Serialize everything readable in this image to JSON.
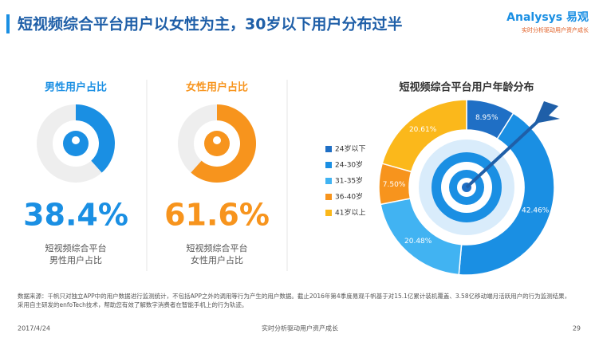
{
  "header": {
    "title": "短视频综合平台用户以女性为主，30岁以下用户分布过半",
    "logo": "Analysys 易观",
    "tagline": "实时分析驱动用户资产成长"
  },
  "chart_data": [
    {
      "type": "donut",
      "title": "男性用户占比",
      "values": [
        38.4
      ],
      "value_labels": [
        "38.4%"
      ],
      "color": "#1a8fe3",
      "caption": [
        "短视频综合平台",
        "男性用户占比"
      ]
    },
    {
      "type": "donut",
      "title": "女性用户占比",
      "values": [
        61.6
      ],
      "value_labels": [
        "61.6%"
      ],
      "color": "#f7941d",
      "caption": [
        "短视频综合平台",
        "女性用户占比"
      ]
    },
    {
      "type": "pie",
      "title": "短视频综合平台用户年龄分布",
      "categories": [
        "24岁以下",
        "24-30岁",
        "31-35岁",
        "36-40岁",
        "41岁以上"
      ],
      "values": [
        8.95,
        42.46,
        20.48,
        7.5,
        20.61
      ],
      "value_labels": [
        "8.95%",
        "42.46%",
        "20.48%",
        "7.50%",
        "20.61%"
      ],
      "colors": [
        "#1f6fc5",
        "#1a8fe3",
        "#41b3f2",
        "#f7941d",
        "#fbb81b"
      ],
      "legend": "left"
    }
  ],
  "footnote": "数据来源：千帆只对独立APP中的用户数据进行监测统计，不包括APP之外的调用等行为产生的用户数据。截止2016年第4季度易观千帆基于对15.1亿累计装机覆盖、3.58亿移动端月活跃用户的行为监测结果，采用自主研发的enfoTech技术，帮助您有效了解数字消费者在智能手机上的行为轨迹。",
  "footer": {
    "date": "2017/4/24",
    "slogan": "实时分析驱动用户资产成长",
    "page": "29"
  }
}
